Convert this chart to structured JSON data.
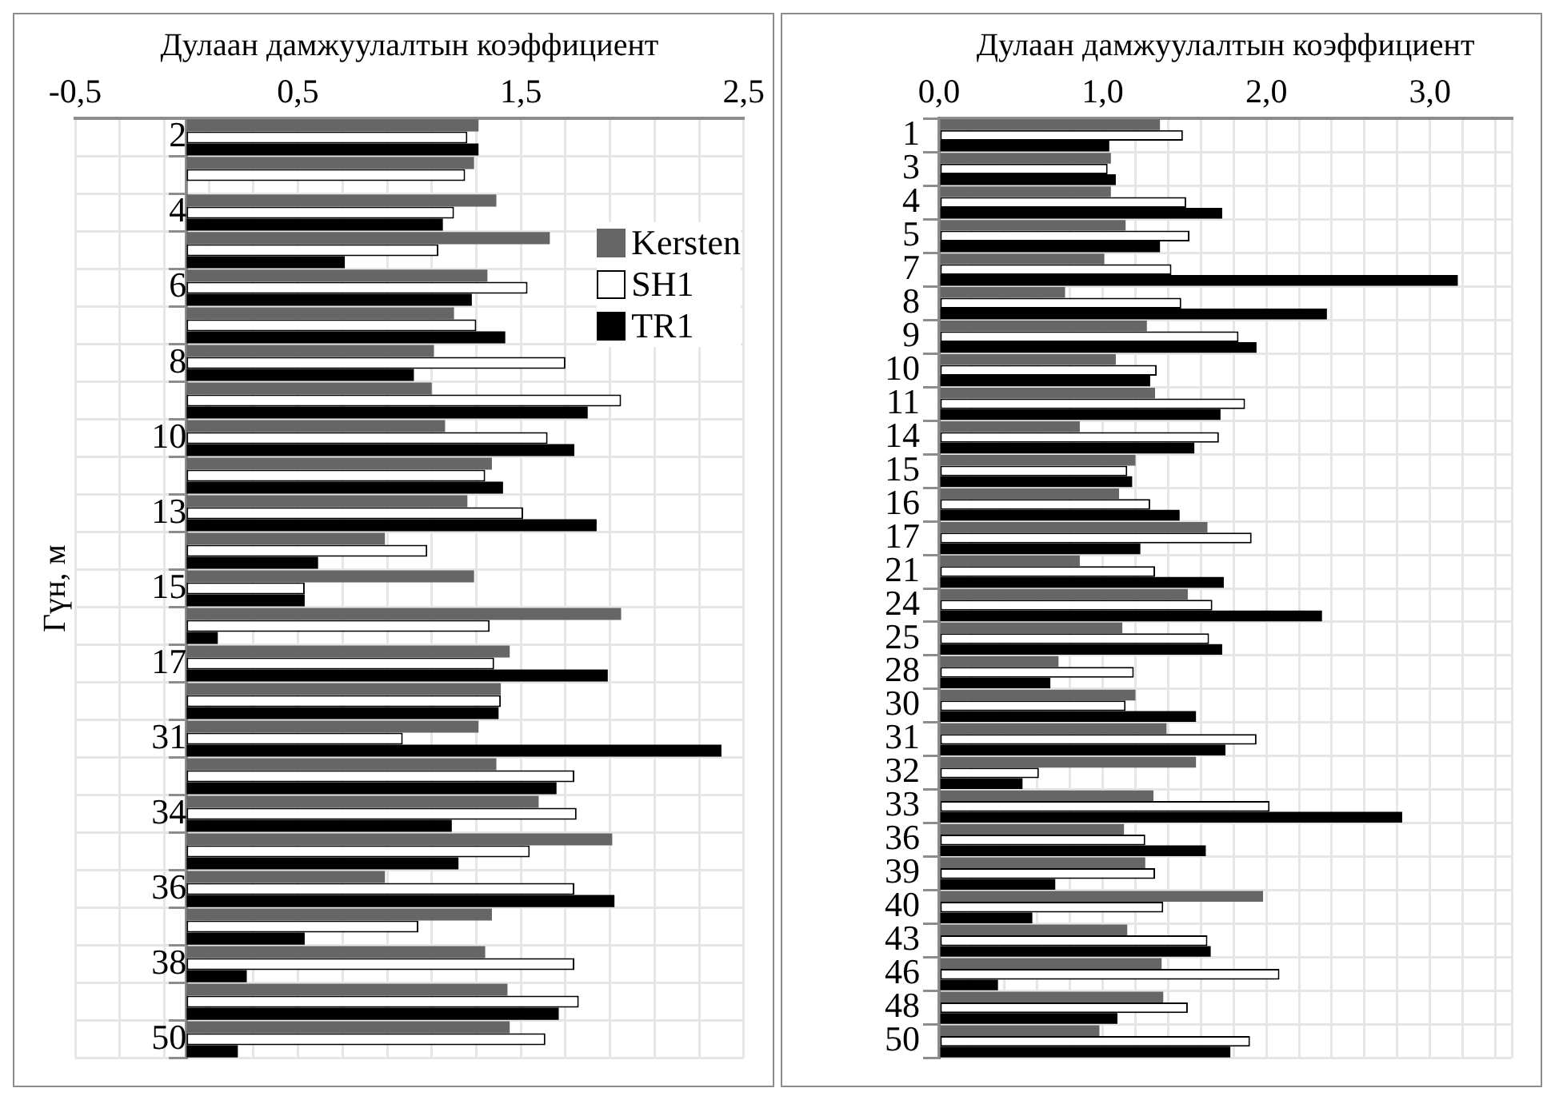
{
  "chart_data": [
    {
      "type": "bar",
      "orientation": "horizontal",
      "xlabel": "Дулаан дамжуулалтын коэффициент",
      "ylabel": "Гүн, м",
      "legend": "top right",
      "grid": true,
      "categories": [
        "2",
        null,
        "4",
        null,
        "6",
        null,
        "8",
        null,
        "10",
        null,
        "13",
        null,
        "15",
        null,
        "17",
        null,
        "31",
        null,
        "34",
        null,
        "36",
        null,
        "38",
        null,
        "50"
      ],
      "xlim": [
        -0.5,
        2.5
      ],
      "xticks": [
        {
          "value": -0.5,
          "label": "-0,5"
        },
        {
          "value": -0.3,
          "label": null
        },
        {
          "value": -0.1,
          "label": null
        },
        {
          "value": 0.1,
          "label": null
        },
        {
          "value": 0.3,
          "label": null
        },
        {
          "value": 0.5,
          "label": "0,5"
        },
        {
          "value": 0.7,
          "label": null
        },
        {
          "value": 0.9,
          "label": null
        },
        {
          "value": 1.1,
          "label": null
        },
        {
          "value": 1.3,
          "label": null
        },
        {
          "value": 1.5,
          "label": "1,5"
        },
        {
          "value": 1.7,
          "label": null
        },
        {
          "value": 1.9,
          "label": null
        },
        {
          "value": 2.1,
          "label": null
        },
        {
          "value": 2.3,
          "label": null
        },
        {
          "value": 2.5,
          "label": "2,5"
        }
      ],
      "series": [
        {
          "name": "Kersten",
          "color": "#666666",
          "values": [
            1.31,
            1.29,
            1.39,
            1.63,
            1.35,
            1.2,
            1.11,
            1.1,
            1.16,
            1.37,
            1.26,
            0.89,
            1.29,
            1.95,
            1.45,
            1.41,
            1.31,
            1.39,
            1.58,
            1.91,
            0.89,
            1.37,
            1.34,
            1.44,
            1.45
          ]
        },
        {
          "name": "SH1",
          "color": "#ffffff",
          "values": [
            1.26,
            1.25,
            1.2,
            1.13,
            1.53,
            1.3,
            1.7,
            1.95,
            1.62,
            1.34,
            1.51,
            1.08,
            0.53,
            1.36,
            1.38,
            1.41,
            0.97,
            1.74,
            1.75,
            1.54,
            1.74,
            1.04,
            1.74,
            1.76,
            1.61
          ]
        },
        {
          "name": "TR1",
          "color": "#000000",
          "values": [
            1.31,
            null,
            1.15,
            0.71,
            1.28,
            1.43,
            1.02,
            1.8,
            1.74,
            1.42,
            1.84,
            0.59,
            0.53,
            0.14,
            1.89,
            1.4,
            2.4,
            1.66,
            1.19,
            1.22,
            1.92,
            0.53,
            0.27,
            1.67,
            0.23
          ]
        }
      ]
    },
    {
      "type": "bar",
      "orientation": "horizontal",
      "xlabel": "Дулаан дамжуулалтын коэффициент",
      "grid": true,
      "categories": [
        "1",
        "3",
        "4",
        "5",
        "7",
        "8",
        "9",
        "10",
        "11",
        "14",
        "15",
        "16",
        "17",
        "21",
        "24",
        "25",
        "28",
        "30",
        "31",
        "32",
        "33",
        "36",
        "39",
        "40",
        "43",
        "46",
        "48",
        "50"
      ],
      "xlim": [
        0,
        3.5
      ],
      "xticks": [
        {
          "value": 0,
          "label": "0,0"
        },
        {
          "value": 0.2,
          "label": null
        },
        {
          "value": 0.4,
          "label": null
        },
        {
          "value": 0.6,
          "label": null
        },
        {
          "value": 0.8,
          "label": null
        },
        {
          "value": 1,
          "label": "1,0"
        },
        {
          "value": 1.2,
          "label": null
        },
        {
          "value": 1.4,
          "label": null
        },
        {
          "value": 1.6,
          "label": null
        },
        {
          "value": 1.8,
          "label": null
        },
        {
          "value": 2,
          "label": "2,0"
        },
        {
          "value": 2.2,
          "label": null
        },
        {
          "value": 2.4,
          "label": null
        },
        {
          "value": 2.6,
          "label": null
        },
        {
          "value": 2.8,
          "label": null
        },
        {
          "value": 3,
          "label": "3,0"
        },
        {
          "value": 3.2,
          "label": null
        },
        {
          "value": 3.4,
          "label": null
        },
        {
          "value": 3.5,
          "label": null
        }
      ],
      "series": [
        {
          "color": "#666666",
          "values": [
            1.35,
            1.05,
            1.05,
            1.14,
            1.01,
            0.77,
            1.27,
            1.08,
            1.32,
            0.86,
            1.2,
            1.1,
            1.64,
            0.86,
            1.52,
            1.12,
            0.73,
            1.2,
            1.39,
            1.57,
            1.31,
            1.13,
            1.26,
            1.98,
            1.15,
            1.36,
            1.37,
            0.98
          ]
        },
        {
          "color": "#ffffff",
          "values": [
            1.49,
            1.03,
            1.51,
            1.53,
            1.42,
            1.48,
            1.83,
            1.33,
            1.87,
            1.71,
            1.15,
            1.29,
            1.91,
            1.32,
            1.67,
            1.65,
            1.19,
            1.14,
            1.94,
            0.61,
            2.02,
            1.26,
            1.32,
            1.37,
            1.64,
            2.08,
            1.52,
            1.9
          ]
        },
        {
          "color": "#000000",
          "values": [
            1.04,
            1.08,
            1.73,
            1.35,
            3.17,
            2.37,
            1.94,
            1.29,
            1.72,
            1.56,
            1.18,
            1.47,
            1.23,
            1.74,
            2.34,
            1.73,
            0.68,
            1.57,
            1.75,
            0.51,
            2.83,
            1.63,
            0.71,
            0.57,
            1.66,
            0.36,
            1.09,
            1.78
          ]
        }
      ]
    }
  ]
}
